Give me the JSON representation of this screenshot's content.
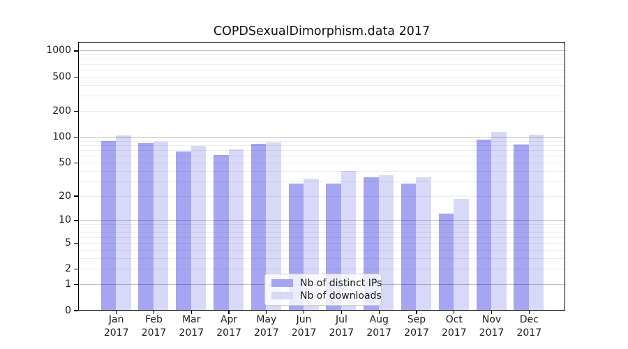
{
  "title": "COPDSexualDimorphism.data 2017",
  "colors": {
    "ips": "#a5a5f2",
    "downloads": "#d8d8f8",
    "axis": "#000000",
    "text": "#1a1a1a",
    "grid_major": "rgba(0,0,0,0.25)",
    "grid_minor": "rgba(0,0,0,0.07)",
    "legend_border": "#cccccc"
  },
  "legend": {
    "items": [
      {
        "label": "Nb of distinct IPs",
        "series": "ips"
      },
      {
        "label": "Nb of downloads",
        "series": "downloads"
      }
    ]
  },
  "y_axis": {
    "tick_labels": [
      "0",
      "1",
      "2",
      "5",
      "10",
      "20",
      "50",
      "100",
      "200",
      "500",
      "1000"
    ],
    "tick_values": [
      0,
      1,
      2,
      5,
      10,
      20,
      50,
      100,
      200,
      500,
      1000
    ],
    "major_gridlines": [
      1,
      10,
      100,
      1000
    ],
    "minor_gridlines": [
      2,
      3,
      4,
      5,
      6,
      7,
      8,
      9,
      20,
      30,
      40,
      50,
      60,
      70,
      80,
      90,
      200,
      300,
      400,
      500,
      600,
      700,
      800,
      900
    ],
    "scale": "log10(1+v)"
  },
  "x_axis": {
    "months": [
      "Jan",
      "Feb",
      "Mar",
      "Apr",
      "May",
      "Jun",
      "Jul",
      "Aug",
      "Sep",
      "Oct",
      "Nov",
      "Dec"
    ],
    "year": "2017"
  },
  "chart_data": {
    "type": "bar",
    "title": "COPDSexualDimorphism.data 2017",
    "categories": [
      "Jan 2017",
      "Feb 2017",
      "Mar 2017",
      "Apr 2017",
      "May 2017",
      "Jun 2017",
      "Jul 2017",
      "Aug 2017",
      "Sep 2017",
      "Oct 2017",
      "Nov 2017",
      "Dec 2017"
    ],
    "series": [
      {
        "name": "Nb of distinct IPs",
        "color": "#a5a5f2",
        "values": [
          88,
          83,
          67,
          61,
          82,
          28,
          28,
          33,
          28,
          12,
          92,
          80
        ]
      },
      {
        "name": "Nb of downloads",
        "color": "#d8d8f8",
        "values": [
          103,
          87,
          77,
          70,
          86,
          32,
          39,
          35,
          33,
          18,
          114,
          105
        ]
      }
    ],
    "yscale": "log1p",
    "ylim": [
      0,
      1300
    ],
    "yticks": [
      0,
      1,
      2,
      5,
      10,
      20,
      50,
      100,
      200,
      500,
      1000
    ],
    "grid": true,
    "legend_position": "lower center"
  }
}
